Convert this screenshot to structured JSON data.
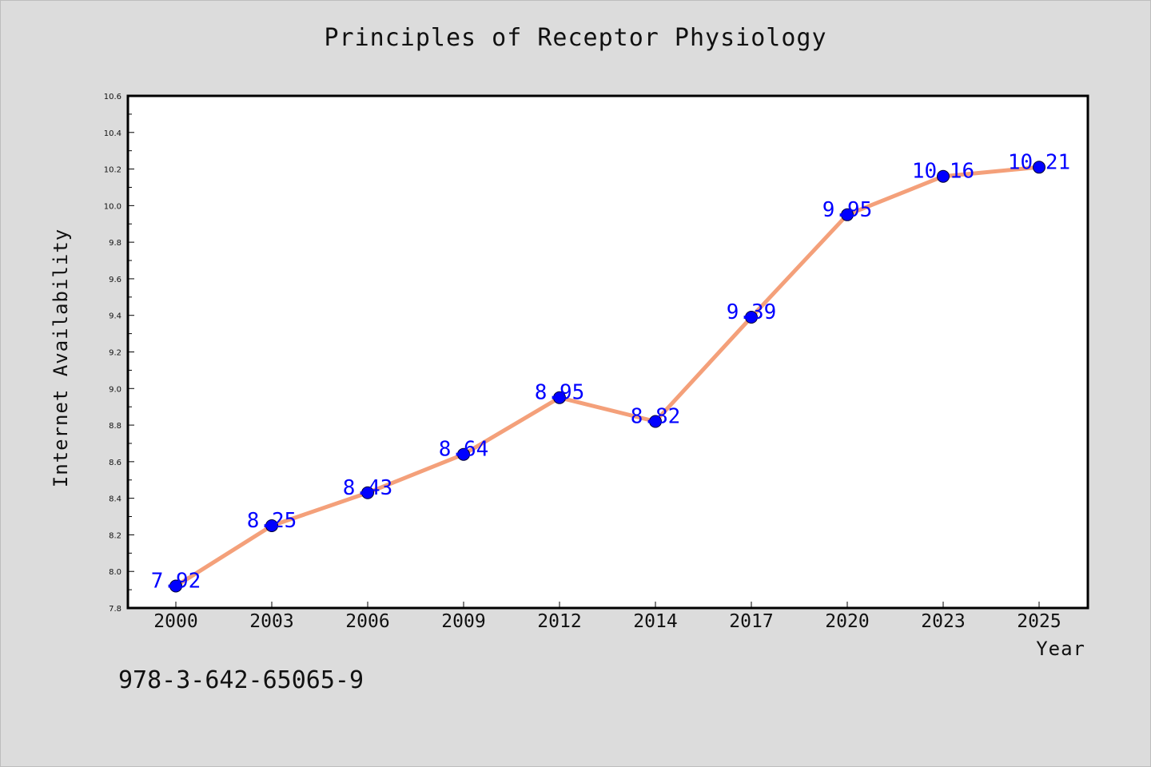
{
  "chart_data": {
    "type": "line",
    "title": "Principles of Receptor Physiology",
    "xlabel": "Year",
    "ylabel": "Internet Availability",
    "categories": [
      "2000",
      "2003",
      "2006",
      "2009",
      "2012",
      "2014",
      "2017",
      "2020",
      "2023",
      "2025"
    ],
    "values": [
      7.92,
      8.25,
      8.43,
      8.64,
      8.95,
      8.82,
      9.39,
      9.95,
      10.16,
      10.21
    ],
    "data_labels": [
      "7.92",
      "8.25",
      "8.43",
      "8.64",
      "8.95",
      "8.82",
      "9.39",
      "9.95",
      "10.16",
      "10.21"
    ],
    "ylim": [
      7.8,
      10.6
    ],
    "yticks": [
      "7.8",
      "8.0",
      "8.2",
      "8.4",
      "8.6",
      "8.8",
      "9.0",
      "9.2",
      "9.4",
      "9.6",
      "9.8",
      "10.0",
      "10.2",
      "10.4",
      "10.6"
    ],
    "grid": false,
    "line_color": "#f4a07a",
    "marker_color": "#0000ff",
    "label_color": "#0000ff",
    "plot_background": "#ffffff",
    "figure_background": "#dcdcdc"
  },
  "footer": {
    "code": "978-3-642-65065-9"
  }
}
